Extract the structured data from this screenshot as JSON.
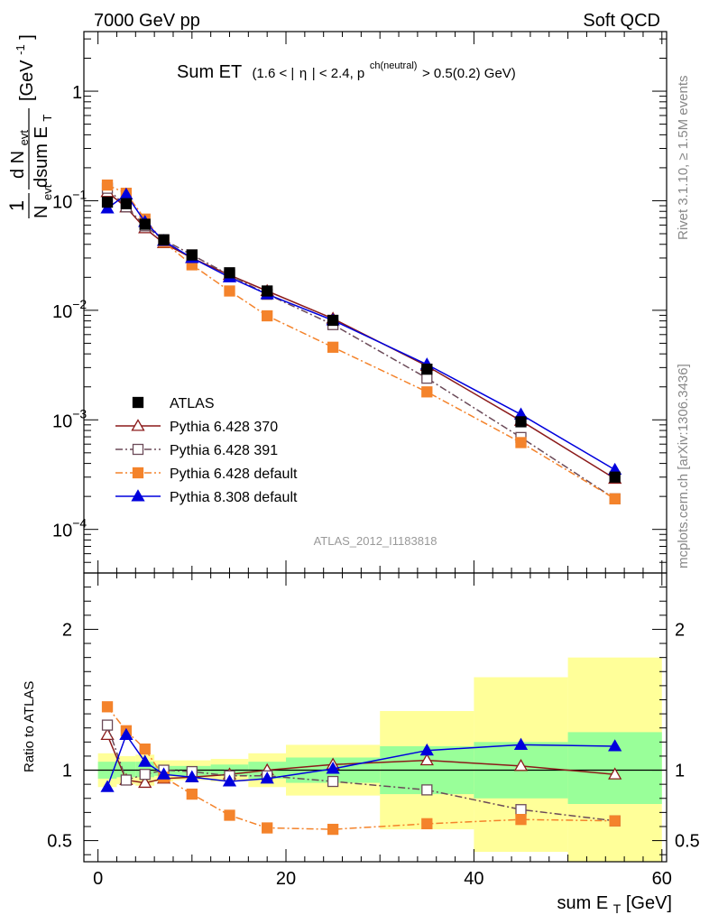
{
  "header": {
    "left": "7000 GeV pp",
    "right": "Soft QCD"
  },
  "side_labels": {
    "rivet": "Rivet 3.1.10, ≥ 1.5M events",
    "mcplots": "mcplots.cern.ch [arXiv:1306.3436]"
  },
  "chart_data": [
    {
      "type": "line",
      "title": "Sum ET",
      "title_cut": {
        "open": "(1.6 < |",
        "eta": "η",
        "mid": "| < 2.4, p",
        "sup": "ch(neutral)",
        "close": " > 0.5(0.2) GeV)"
      },
      "ylabel": {
        "one": "1",
        "n_evt": "N",
        "evt_sub": "evt",
        "dN": "d N",
        "dsum": "dsum E",
        "t_sub": "T",
        "unit": "[GeV",
        "unit_sup": "-1",
        "unit_close": "]"
      },
      "yscale": "log",
      "ylim": [
        4e-05,
        3.5
      ],
      "xlim": [
        -1.5,
        60.5
      ],
      "y_ticks": [
        {
          "value": 1,
          "label": "1"
        },
        {
          "value": 0.1,
          "label": "10",
          "exp": "−1"
        },
        {
          "value": 0.01,
          "label": "10",
          "exp": "−2"
        },
        {
          "value": 0.001,
          "label": "10",
          "exp": "−3"
        },
        {
          "value": 0.0001,
          "label": "10",
          "exp": "−4"
        }
      ],
      "watermark": "ATLAS_2012_I1183818",
      "legend_position": "bottom-left",
      "x": [
        1,
        3,
        5,
        7,
        10,
        14,
        18,
        25,
        35,
        45,
        55
      ],
      "series": [
        {
          "name": "ATLAS",
          "color": "#000000",
          "marker": "square-filled",
          "dash": "none",
          "values": [
            0.097,
            0.094,
            0.061,
            0.044,
            0.032,
            0.022,
            0.015,
            0.0081,
            0.0029,
            0.00096,
            0.0003
          ]
        },
        {
          "name": "Pythia 6.428 370",
          "color": "#8b1a1a",
          "marker": "triangle-open",
          "dash": "solid",
          "values": [
            0.12,
            0.087,
            0.056,
            0.041,
            0.03,
            0.021,
            0.015,
            0.0084,
            0.0031,
            0.00098,
            0.00029
          ]
        },
        {
          "name": "Pythia 6.428 391",
          "color": "#6b4a58",
          "marker": "square-open",
          "dash": "dashdot",
          "values": [
            0.13,
            0.088,
            0.059,
            0.044,
            0.032,
            0.021,
            0.014,
            0.0074,
            0.0024,
            0.00069,
            0.00019
          ]
        },
        {
          "name": "Pythia 6.428 default",
          "color": "#f4832b",
          "marker": "square-filled",
          "dash": "dashdot",
          "values": [
            0.139,
            0.117,
            0.068,
            0.042,
            0.026,
            0.015,
            0.0089,
            0.0046,
            0.0018,
            0.00062,
            0.00019
          ]
        },
        {
          "name": "Pythia 8.308 default",
          "color": "#0000dd",
          "marker": "triangle-filled",
          "dash": "solid",
          "values": [
            0.085,
            0.114,
            0.064,
            0.043,
            0.03,
            0.02,
            0.014,
            0.0081,
            0.0032,
            0.00112,
            0.00035
          ]
        }
      ]
    },
    {
      "type": "line",
      "ylabel": "Ratio to ATLAS",
      "xlabel": "sum E",
      "xlabel_sub": "T",
      "xlabel_unit": " [GeV]",
      "ylim": [
        0.35,
        2.4
      ],
      "xlim": [
        -1.5,
        60.5
      ],
      "x_ticks": [
        0,
        20,
        40,
        60
      ],
      "y_ticks": [
        0.5,
        1,
        2
      ],
      "bands": [
        {
          "lo": 0,
          "hi": 2,
          "green": [
            0.94,
            1.06
          ],
          "yellow": [
            0.88,
            1.12
          ]
        },
        {
          "lo": 2,
          "hi": 4,
          "green": [
            0.95,
            1.06
          ],
          "yellow": [
            0.9,
            1.1
          ]
        },
        {
          "lo": 4,
          "hi": 6,
          "green": [
            0.95,
            1.06
          ],
          "yellow": [
            0.89,
            1.11
          ]
        },
        {
          "lo": 6,
          "hi": 8,
          "green": [
            0.96,
            1.03
          ],
          "yellow": [
            0.92,
            1.07
          ]
        },
        {
          "lo": 8,
          "hi": 12,
          "green": [
            0.96,
            1.03
          ],
          "yellow": [
            0.93,
            1.07
          ]
        },
        {
          "lo": 12,
          "hi": 16,
          "green": [
            0.96,
            1.04
          ],
          "yellow": [
            0.92,
            1.08
          ]
        },
        {
          "lo": 16,
          "hi": 20,
          "green": [
            0.94,
            1.06
          ],
          "yellow": [
            0.88,
            1.12
          ]
        },
        {
          "lo": 20,
          "hi": 30,
          "green": [
            0.91,
            1.09
          ],
          "yellow": [
            0.82,
            1.18
          ]
        },
        {
          "lo": 30,
          "hi": 40,
          "green": [
            0.83,
            1.17
          ],
          "yellow": [
            0.58,
            1.42
          ]
        },
        {
          "lo": 40,
          "hi": 50,
          "green": [
            0.8,
            1.2
          ],
          "yellow": [
            0.42,
            1.66
          ]
        },
        {
          "lo": 50,
          "hi": 60,
          "green": [
            0.76,
            1.27
          ],
          "yellow": [
            0.35,
            1.8
          ]
        }
      ],
      "x": [
        1,
        3,
        5,
        7,
        10,
        14,
        18,
        25,
        35,
        45,
        55
      ],
      "series": [
        {
          "name": "Pythia 6.428 370",
          "color": "#8b1a1a",
          "marker": "triangle-open",
          "dash": "solid",
          "values": [
            1.25,
            0.93,
            0.91,
            0.94,
            0.95,
            0.97,
            1.0,
            1.04,
            1.07,
            1.03,
            0.97
          ]
        },
        {
          "name": "Pythia 6.428 391",
          "color": "#6b4a58",
          "marker": "square-open",
          "dash": "dashdot",
          "values": [
            1.32,
            0.93,
            0.97,
            1.0,
            0.99,
            0.96,
            0.96,
            0.92,
            0.86,
            0.72,
            0.64
          ]
        },
        {
          "name": "Pythia 6.428 default",
          "color": "#f4832b",
          "marker": "square-filled",
          "dash": "dashdot",
          "values": [
            1.45,
            1.28,
            1.15,
            0.95,
            0.83,
            0.68,
            0.59,
            0.58,
            0.62,
            0.65,
            0.64
          ]
        },
        {
          "name": "Pythia 8.308 default",
          "color": "#0000dd",
          "marker": "triangle-filled",
          "dash": "solid",
          "values": [
            0.88,
            1.25,
            1.06,
            0.97,
            0.95,
            0.92,
            0.94,
            1.01,
            1.14,
            1.18,
            1.17
          ]
        }
      ]
    }
  ]
}
